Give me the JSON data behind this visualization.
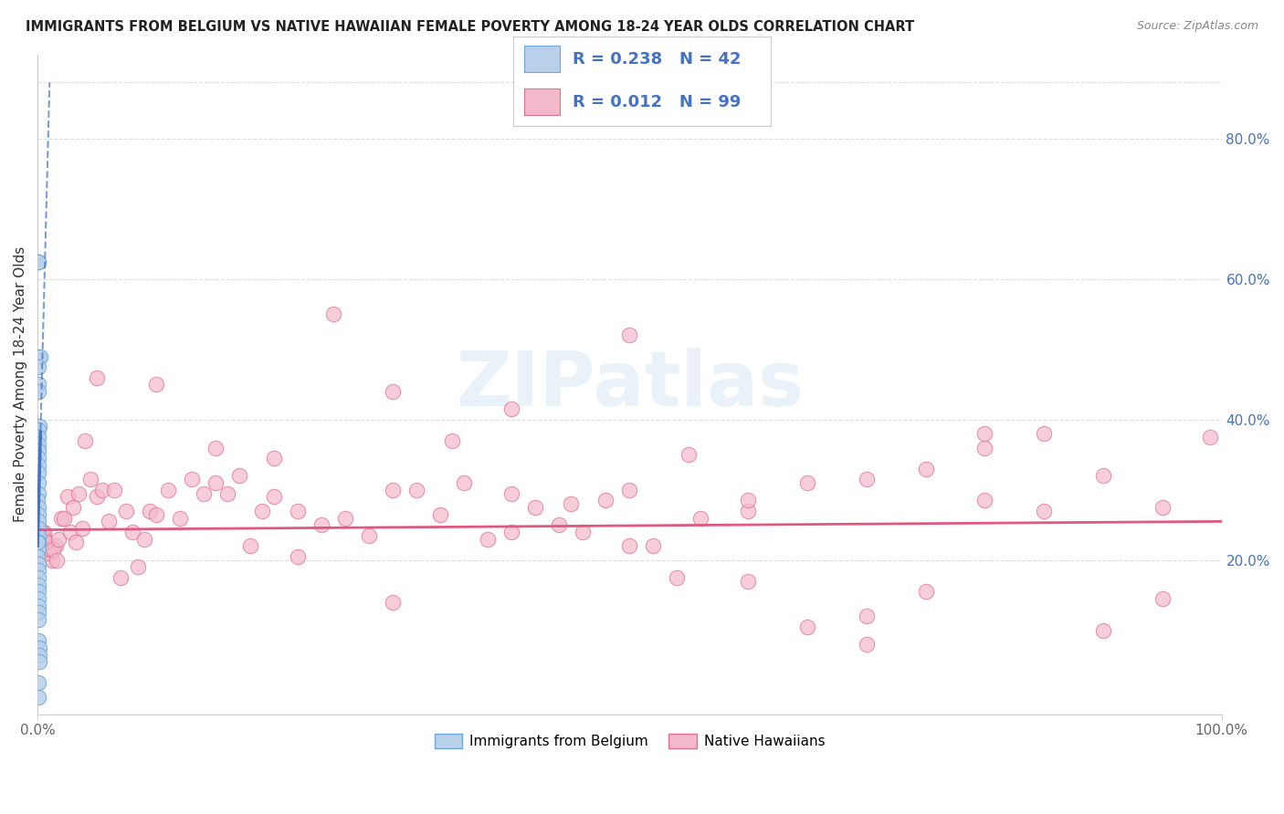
{
  "title": "IMMIGRANTS FROM BELGIUM VS NATIVE HAWAIIAN FEMALE POVERTY AMONG 18-24 YEAR OLDS CORRELATION CHART",
  "source": "Source: ZipAtlas.com",
  "ylabel": "Female Poverty Among 18-24 Year Olds",
  "background_color": "#ffffff",
  "legend_label_1": "Immigrants from Belgium",
  "legend_label_2": "Native Hawaiians",
  "R1": 0.238,
  "N1": 42,
  "R2": 0.012,
  "N2": 99,
  "blue_color": "#b8d0ea",
  "blue_edge_color": "#6fa8d6",
  "blue_line_color": "#4472c4",
  "pink_color": "#f4b8cb",
  "pink_edge_color": "#e07090",
  "pink_line_color": "#e05880",
  "legend_text_color": "#4472c4",
  "title_color": "#222222",
  "axis_tick_color": "#666666",
  "grid_color": "#dddddd",
  "blue_scatter_x": [
    0.0005,
    0.001,
    0.0005,
    0.002,
    0.001,
    0.001,
    0.0008,
    0.0012,
    0.0003,
    0.0007,
    0.0009,
    0.0005,
    0.0006,
    0.0004,
    0.0008,
    0.001,
    0.0003,
    0.0002,
    0.0004,
    0.0006,
    0.0007,
    0.0008,
    0.0009,
    0.0005,
    0.0003,
    0.0002,
    0.001,
    0.0007,
    0.0005,
    0.0006,
    0.001,
    0.0004,
    0.0009,
    0.0006,
    0.0003,
    0.0007,
    0.0011,
    0.0013,
    0.0015,
    0.0002,
    0.001,
    0.0004
  ],
  "blue_scatter_y": [
    0.625,
    0.625,
    0.49,
    0.49,
    0.475,
    0.45,
    0.44,
    0.39,
    0.385,
    0.375,
    0.365,
    0.355,
    0.345,
    0.335,
    0.325,
    0.31,
    0.295,
    0.285,
    0.275,
    0.265,
    0.255,
    0.245,
    0.235,
    0.225,
    0.215,
    0.205,
    0.195,
    0.185,
    0.175,
    0.165,
    0.155,
    0.145,
    0.135,
    0.125,
    0.115,
    0.085,
    0.075,
    0.065,
    0.055,
    0.225,
    0.025,
    0.005
  ],
  "pink_scatter_x": [
    0.001,
    0.002,
    0.012,
    0.005,
    0.008,
    0.003,
    0.015,
    0.009,
    0.006,
    0.004,
    0.011,
    0.007,
    0.013,
    0.02,
    0.016,
    0.025,
    0.018,
    0.03,
    0.022,
    0.035,
    0.028,
    0.04,
    0.032,
    0.045,
    0.038,
    0.05,
    0.055,
    0.06,
    0.065,
    0.07,
    0.075,
    0.08,
    0.085,
    0.09,
    0.095,
    0.1,
    0.11,
    0.12,
    0.13,
    0.14,
    0.15,
    0.16,
    0.17,
    0.18,
    0.19,
    0.2,
    0.22,
    0.24,
    0.26,
    0.28,
    0.3,
    0.32,
    0.34,
    0.36,
    0.38,
    0.4,
    0.42,
    0.44,
    0.46,
    0.48,
    0.5,
    0.52,
    0.54,
    0.56,
    0.6,
    0.65,
    0.7,
    0.75,
    0.8,
    0.85,
    0.9,
    0.95,
    0.99,
    0.05,
    0.1,
    0.15,
    0.2,
    0.25,
    0.3,
    0.35,
    0.4,
    0.45,
    0.5,
    0.55,
    0.6,
    0.65,
    0.7,
    0.75,
    0.8,
    0.85,
    0.9,
    0.95,
    0.22,
    0.3,
    0.4,
    0.5,
    0.6,
    0.7,
    0.8
  ],
  "pink_scatter_y": [
    0.225,
    0.225,
    0.2,
    0.24,
    0.22,
    0.23,
    0.22,
    0.21,
    0.23,
    0.24,
    0.215,
    0.225,
    0.215,
    0.26,
    0.2,
    0.29,
    0.23,
    0.275,
    0.26,
    0.295,
    0.24,
    0.37,
    0.225,
    0.315,
    0.245,
    0.29,
    0.3,
    0.255,
    0.3,
    0.175,
    0.27,
    0.24,
    0.19,
    0.23,
    0.27,
    0.265,
    0.3,
    0.26,
    0.315,
    0.295,
    0.31,
    0.295,
    0.32,
    0.22,
    0.27,
    0.345,
    0.27,
    0.25,
    0.26,
    0.235,
    0.3,
    0.3,
    0.265,
    0.31,
    0.23,
    0.295,
    0.275,
    0.25,
    0.24,
    0.285,
    0.22,
    0.22,
    0.175,
    0.26,
    0.27,
    0.105,
    0.12,
    0.155,
    0.285,
    0.27,
    0.1,
    0.275,
    0.375,
    0.46,
    0.45,
    0.36,
    0.29,
    0.55,
    0.44,
    0.37,
    0.415,
    0.28,
    0.52,
    0.35,
    0.285,
    0.31,
    0.315,
    0.33,
    0.36,
    0.38,
    0.32,
    0.145,
    0.205,
    0.14,
    0.24,
    0.3,
    0.17,
    0.08,
    0.38
  ],
  "blue_line_intercept": 0.22,
  "blue_line_slope": 65.0,
  "pink_line_intercept": 0.243,
  "pink_line_slope": 0.012,
  "xlim": [
    0.0,
    1.0
  ],
  "ylim": [
    -0.02,
    0.92
  ],
  "yticks": [
    0.0,
    0.2,
    0.4,
    0.6,
    0.8
  ],
  "xtick_labels": [
    "0.0%",
    "100.0%"
  ],
  "ytick_labels": [
    "20.0%",
    "40.0%",
    "60.0%",
    "80.0%"
  ]
}
